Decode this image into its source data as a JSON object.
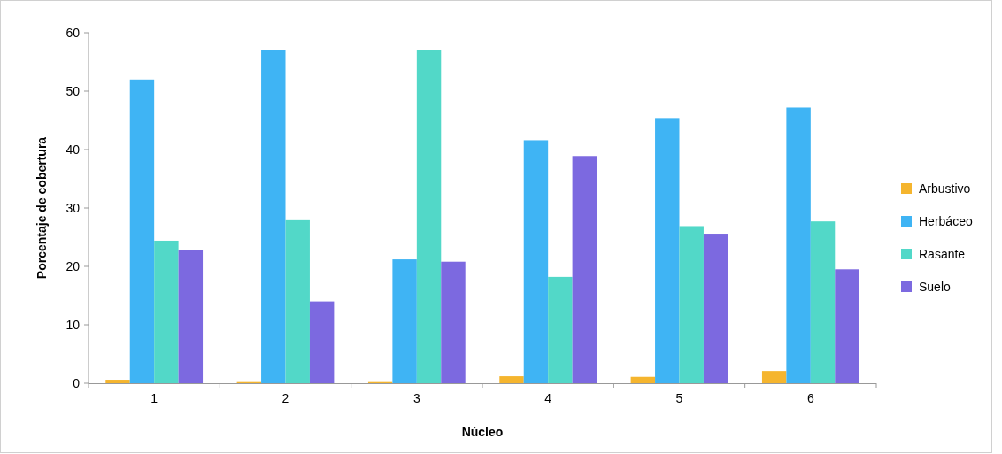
{
  "chart_data": {
    "type": "bar",
    "xlabel": "Núcleo",
    "ylabel": "Porcentaje de cobertura",
    "categories": [
      "1",
      "2",
      "3",
      "4",
      "5",
      "6"
    ],
    "series": [
      {
        "name": "Arbustivo",
        "color": "#f5b52e",
        "values": [
          0.6,
          0.2,
          0.2,
          1.2,
          1.1,
          2.1
        ]
      },
      {
        "name": "Herbáceo",
        "color": "#3fb4f4",
        "values": [
          52,
          57.1,
          21.2,
          41.6,
          45.4,
          47.2
        ]
      },
      {
        "name": "Rasante",
        "color": "#52d8c8",
        "values": [
          24.4,
          27.9,
          57.1,
          18.2,
          26.9,
          27.7
        ]
      },
      {
        "name": "Suelo",
        "color": "#7c69e0",
        "values": [
          22.8,
          14,
          20.8,
          38.9,
          25.6,
          19.5
        ]
      }
    ],
    "ylim": [
      0,
      60
    ],
    "yticks": [
      0,
      10,
      20,
      30,
      40,
      50,
      60
    ],
    "grid": false,
    "legend": "right"
  }
}
